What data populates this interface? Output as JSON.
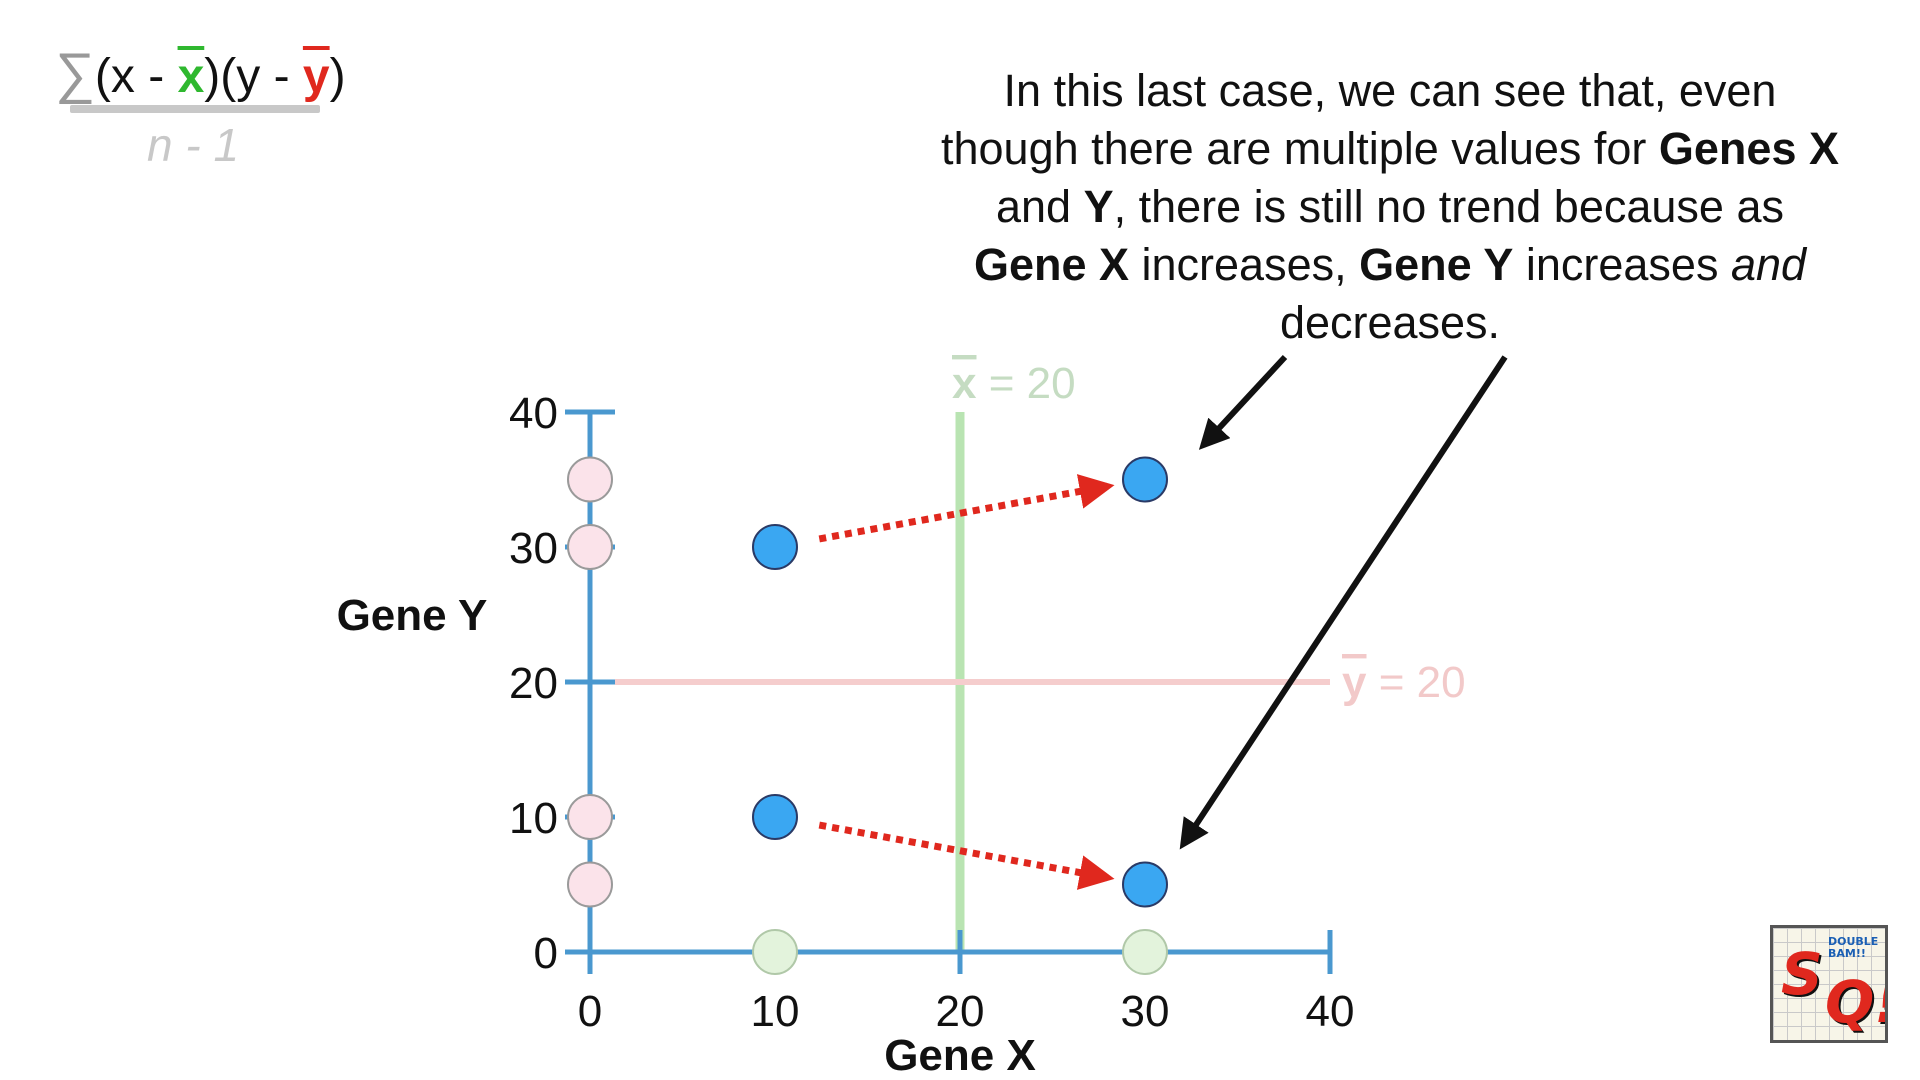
{
  "formula": {
    "sum": "∑",
    "open_x": "(x - ",
    "xbar": "x",
    "mid": ")(y - ",
    "ybar": "y",
    "close": ")",
    "denominator": "n - 1"
  },
  "annotation": {
    "p1": "In this last case, we can see that, even though there are multiple values for ",
    "b1": "Genes X",
    "p2": " and ",
    "b2": "Y",
    "p3": ", there is still no trend because as ",
    "b3": "Gene X",
    "p4": " increases, ",
    "b4": "Gene Y",
    "p5": " increases ",
    "i1": "and",
    "p6": " decreases."
  },
  "logo": {
    "small_text": "DOUBLE BAM!!",
    "s": "S",
    "q": "Q!"
  },
  "colors": {
    "axis": "#4a98cf",
    "point": "#3aa7f2",
    "point_stroke": "#2a3a66",
    "y_marginal": "#fbe3ea",
    "x_marginal": "#e3f3dc",
    "mean_x_line": "#b9e4b2",
    "mean_y_line": "#f5cdcd",
    "arrow_red": "#e0281e",
    "arrow_black": "#111111"
  },
  "chart_data": {
    "type": "scatter",
    "xlabel": "Gene X",
    "ylabel": "Gene Y",
    "xlim": [
      0,
      40
    ],
    "ylim": [
      0,
      40
    ],
    "xticks": [
      0,
      10,
      20,
      30,
      40
    ],
    "yticks": [
      0,
      10,
      20,
      30,
      40
    ],
    "points": [
      {
        "x": 10,
        "y": 30
      },
      {
        "x": 30,
        "y": 35
      },
      {
        "x": 10,
        "y": 10
      },
      {
        "x": 30,
        "y": 5
      }
    ],
    "y_marginal_points": [
      35,
      30,
      10,
      5
    ],
    "x_marginal_points": [
      10,
      30
    ],
    "mean_x": {
      "value": 20,
      "label": "x",
      "label_value": "= 20"
    },
    "mean_y": {
      "value": 20,
      "label": "y",
      "label_value": "= 20"
    },
    "trend_arrows": [
      {
        "from": [
          10,
          30
        ],
        "to": [
          30,
          35
        ]
      },
      {
        "from": [
          10,
          10
        ],
        "to": [
          30,
          5
        ]
      }
    ],
    "grid": false
  }
}
